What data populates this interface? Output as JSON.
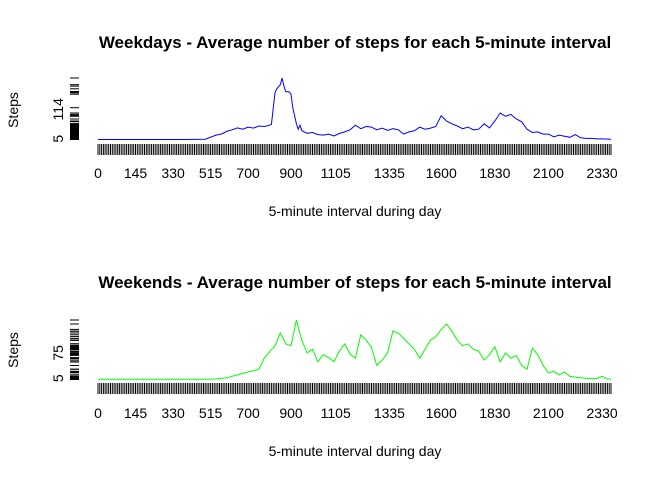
{
  "chart_data": [
    {
      "type": "line",
      "title": "Weekdays - Average number of steps for each 5-minute interval",
      "xlabel": "5-minute interval during day",
      "ylabel": "Steps",
      "color": "#0000ff",
      "x_ticks": [
        "0",
        "145",
        "330",
        "515",
        "700",
        "900",
        "1105",
        "1335",
        "1600",
        "1830",
        "2100",
        "2330"
      ],
      "y_ticks": [
        "5",
        "114"
      ],
      "ylim": [
        0,
        230
      ],
      "series": [
        {
          "points": [
            [
              0,
              2
            ],
            [
              100,
              2
            ],
            [
              200,
              2
            ],
            [
              300,
              2
            ],
            [
              400,
              2
            ],
            [
              500,
              3
            ],
            [
              530,
              18
            ],
            [
              545,
              22
            ],
            [
              600,
              32
            ],
            [
              615,
              38
            ],
            [
              630,
              45
            ],
            [
              645,
              40
            ],
            [
              700,
              48
            ],
            [
              715,
              44
            ],
            [
              730,
              52
            ],
            [
              745,
              50
            ],
            [
              800,
              55
            ],
            [
              805,
              58
            ],
            [
              815,
              175
            ],
            [
              820,
              190
            ],
            [
              830,
              205
            ],
            [
              835,
              230
            ],
            [
              840,
              200
            ],
            [
              845,
              180
            ],
            [
              855,
              178
            ],
            [
              900,
              170
            ],
            [
              905,
              120
            ],
            [
              910,
              90
            ],
            [
              915,
              60
            ],
            [
              920,
              40
            ],
            [
              925,
              55
            ],
            [
              930,
              35
            ],
            [
              945,
              25
            ],
            [
              1000,
              28
            ],
            [
              1015,
              20
            ],
            [
              1030,
              18
            ],
            [
              1045,
              22
            ],
            [
              1100,
              15
            ],
            [
              1115,
              24
            ],
            [
              1130,
              30
            ],
            [
              1145,
              38
            ],
            [
              1200,
              55
            ],
            [
              1215,
              42
            ],
            [
              1230,
              50
            ],
            [
              1245,
              48
            ],
            [
              1300,
              38
            ],
            [
              1315,
              44
            ],
            [
              1330,
              36
            ],
            [
              1345,
              42
            ],
            [
              1400,
              38
            ],
            [
              1415,
              22
            ],
            [
              1430,
              30
            ],
            [
              1445,
              34
            ],
            [
              1500,
              48
            ],
            [
              1515,
              40
            ],
            [
              1530,
              44
            ],
            [
              1545,
              50
            ],
            [
              1600,
              90
            ],
            [
              1615,
              70
            ],
            [
              1630,
              60
            ],
            [
              1645,
              52
            ],
            [
              1700,
              42
            ],
            [
              1715,
              48
            ],
            [
              1730,
              38
            ],
            [
              1745,
              40
            ],
            [
              1800,
              60
            ],
            [
              1815,
              45
            ],
            [
              1830,
              70
            ],
            [
              1845,
              100
            ],
            [
              1900,
              88
            ],
            [
              1915,
              95
            ],
            [
              1930,
              78
            ],
            [
              1945,
              68
            ],
            [
              2000,
              40
            ],
            [
              2015,
              28
            ],
            [
              2030,
              30
            ],
            [
              2045,
              22
            ],
            [
              2100,
              22
            ],
            [
              2115,
              12
            ],
            [
              2130,
              18
            ],
            [
              2145,
              14
            ],
            [
              2200,
              10
            ],
            [
              2215,
              20
            ],
            [
              2230,
              8
            ],
            [
              2245,
              6
            ],
            [
              2300,
              6
            ],
            [
              2315,
              4
            ],
            [
              2330,
              4
            ],
            [
              2355,
              3
            ]
          ]
        }
      ]
    },
    {
      "type": "line",
      "title": "Weekends - Average number of steps for each 5-minute interval",
      "xlabel": "5-minute interval during day",
      "ylabel": "Steps",
      "color": "#00ff00",
      "x_ticks": [
        "0",
        "145",
        "330",
        "515",
        "700",
        "900",
        "1105",
        "1335",
        "1600",
        "1830",
        "2100",
        "2330"
      ],
      "y_ticks": [
        "5",
        "75"
      ],
      "ylim": [
        0,
        166
      ],
      "series": [
        {
          "points": [
            [
              0,
              2
            ],
            [
              100,
              2
            ],
            [
              200,
              2
            ],
            [
              300,
              2
            ],
            [
              400,
              2
            ],
            [
              500,
              2
            ],
            [
              530,
              3
            ],
            [
              600,
              6
            ],
            [
              630,
              14
            ],
            [
              700,
              22
            ],
            [
              730,
              30
            ],
            [
              745,
              60
            ],
            [
              800,
              78
            ],
            [
              815,
              95
            ],
            [
              830,
              130
            ],
            [
              845,
              100
            ],
            [
              900,
              95
            ],
            [
              915,
              166
            ],
            [
              930,
              110
            ],
            [
              945,
              75
            ],
            [
              1000,
              85
            ],
            [
              1015,
              50
            ],
            [
              1030,
              70
            ],
            [
              1045,
              62
            ],
            [
              1100,
              50
            ],
            [
              1115,
              80
            ],
            [
              1130,
              100
            ],
            [
              1145,
              72
            ],
            [
              1200,
              60
            ],
            [
              1215,
              125
            ],
            [
              1230,
              110
            ],
            [
              1245,
              90
            ],
            [
              1300,
              40
            ],
            [
              1315,
              55
            ],
            [
              1330,
              75
            ],
            [
              1345,
              135
            ],
            [
              1400,
              130
            ],
            [
              1415,
              115
            ],
            [
              1430,
              100
            ],
            [
              1445,
              85
            ],
            [
              1500,
              60
            ],
            [
              1515,
              85
            ],
            [
              1530,
              110
            ],
            [
              1545,
              120
            ],
            [
              1600,
              140
            ],
            [
              1615,
              155
            ],
            [
              1630,
              135
            ],
            [
              1645,
              110
            ],
            [
              1700,
              95
            ],
            [
              1715,
              100
            ],
            [
              1730,
              85
            ],
            [
              1745,
              80
            ],
            [
              1800,
              55
            ],
            [
              1815,
              70
            ],
            [
              1830,
              92
            ],
            [
              1845,
              50
            ],
            [
              1900,
              75
            ],
            [
              1915,
              60
            ],
            [
              1930,
              68
            ],
            [
              1945,
              40
            ],
            [
              2000,
              30
            ],
            [
              2015,
              88
            ],
            [
              2030,
              70
            ],
            [
              2045,
              40
            ],
            [
              2100,
              20
            ],
            [
              2115,
              24
            ],
            [
              2130,
              14
            ],
            [
              2145,
              22
            ],
            [
              2200,
              10
            ],
            [
              2215,
              8
            ],
            [
              2230,
              6
            ],
            [
              2245,
              5
            ],
            [
              2300,
              4
            ],
            [
              2315,
              4
            ],
            [
              2330,
              10
            ],
            [
              2345,
              3
            ],
            [
              2355,
              2
            ]
          ]
        }
      ]
    }
  ]
}
